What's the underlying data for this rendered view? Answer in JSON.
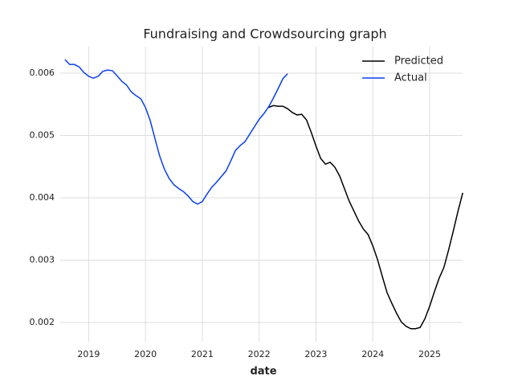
{
  "chart_data": {
    "type": "line",
    "title": "Fundraising and Crowdsourcing graph",
    "x_label": "date",
    "xlim": [
      2018.5,
      2025.58
    ],
    "ylim": [
      0.00169,
      0.006426
    ],
    "xticks": [
      2019,
      2020,
      2021,
      2022,
      2023,
      2024,
      2025
    ],
    "yticks": [
      0.002,
      0.003,
      0.004,
      0.005,
      0.006
    ],
    "grid": true,
    "legend": "upper right",
    "series": [
      {
        "name": "Predicted",
        "color": "#000000",
        "x": [
          2022.167,
          2022.25,
          2022.333,
          2022.417,
          2022.5,
          2022.583,
          2022.667,
          2022.75,
          2022.833,
          2022.917,
          2023.0,
          2023.083,
          2023.167,
          2023.25,
          2023.333,
          2023.417,
          2023.5,
          2023.583,
          2023.667,
          2023.75,
          2023.833,
          2023.917,
          2024.0,
          2024.083,
          2024.167,
          2024.25,
          2024.333,
          2024.417,
          2024.5,
          2024.583,
          2024.667,
          2024.75,
          2024.833,
          2024.917,
          2025.0,
          2025.083,
          2025.167,
          2025.25,
          2025.333,
          2025.417,
          2025.5,
          2025.583
        ],
        "values": [
          0.00545,
          0.00548,
          0.00547,
          0.00547,
          0.00543,
          0.00537,
          0.00533,
          0.00534,
          0.00525,
          0.00505,
          0.00483,
          0.00463,
          0.00454,
          0.00457,
          0.00449,
          0.00435,
          0.00415,
          0.00395,
          0.00379,
          0.00363,
          0.0035,
          0.00341,
          0.00323,
          0.00301,
          0.00274,
          0.00248,
          0.00231,
          0.00215,
          0.00201,
          0.00194,
          0.0019,
          0.0019,
          0.00192,
          0.00206,
          0.00226,
          0.00249,
          0.00271,
          0.00288,
          0.00316,
          0.00347,
          0.00379,
          0.00408
        ]
      },
      {
        "name": "Actual",
        "color": "#0a3ff0",
        "x": [
          2018.583,
          2018.667,
          2018.75,
          2018.833,
          2018.917,
          2019.0,
          2019.083,
          2019.167,
          2019.25,
          2019.333,
          2019.417,
          2019.5,
          2019.583,
          2019.667,
          2019.75,
          2019.833,
          2019.917,
          2020.0,
          2020.083,
          2020.167,
          2020.25,
          2020.333,
          2020.417,
          2020.5,
          2020.583,
          2020.667,
          2020.75,
          2020.833,
          2020.917,
          2021.0,
          2021.083,
          2021.167,
          2021.25,
          2021.333,
          2021.417,
          2021.5,
          2021.583,
          2021.667,
          2021.75,
          2021.833,
          2021.917,
          2022.0,
          2022.083,
          2022.167,
          2022.25,
          2022.333,
          2022.417,
          2022.5
        ],
        "values": [
          0.00622,
          0.00614,
          0.00614,
          0.0061,
          0.00601,
          0.00595,
          0.00592,
          0.00595,
          0.00603,
          0.00605,
          0.00604,
          0.00596,
          0.00587,
          0.00581,
          0.0057,
          0.00564,
          0.00559,
          0.00545,
          0.00524,
          0.00495,
          0.00467,
          0.00446,
          0.00431,
          0.00421,
          0.00415,
          0.0041,
          0.00403,
          0.00394,
          0.0039,
          0.00394,
          0.00406,
          0.00417,
          0.00425,
          0.00434,
          0.00443,
          0.00459,
          0.00476,
          0.00484,
          0.0049,
          0.00502,
          0.00514,
          0.00526,
          0.00535,
          0.00546,
          0.0056,
          0.00575,
          0.00591,
          0.00599
        ]
      }
    ]
  }
}
